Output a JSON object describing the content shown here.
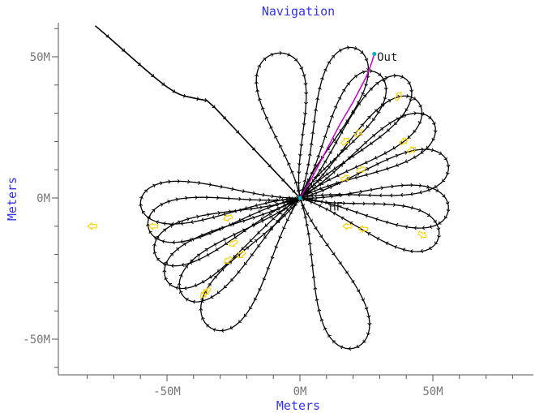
{
  "chart_data": {
    "type": "scatter",
    "title": "Navigation",
    "xlabel": "Meters",
    "ylabel": "Meters",
    "xlim": [
      -83,
      82
    ],
    "ylim": [
      -62,
      62
    ],
    "grid": false,
    "x_ticks": [
      {
        "value": -50,
        "label": "-50M"
      },
      {
        "value": 0,
        "label": "0M"
      },
      {
        "value": 50,
        "label": "50M"
      }
    ],
    "x_minor_ticks": [
      -80,
      -70,
      -60,
      -40,
      -30,
      -20,
      -10,
      10,
      20,
      30,
      40,
      60,
      70,
      80
    ],
    "y_ticks": [
      {
        "value": 50,
        "label": "50M"
      },
      {
        "value": 0,
        "label": "0M"
      },
      {
        "value": -50,
        "label": "-50M"
      }
    ],
    "y_minor_ticks": [
      -60,
      -40,
      -30,
      -20,
      -10,
      10,
      20,
      30,
      40,
      60
    ],
    "annotations": [
      {
        "text": "Out",
        "x": 29,
        "y": 50
      },
      {
        "text": "HF",
        "x": 11,
        "y": -3
      }
    ],
    "track_colors": {
      "track": "#000000",
      "out_leg": "#cc00cc",
      "arrow": "#ffd000",
      "marker": "#00b0c0"
    },
    "approach_track": [
      [
        -77,
        61
      ],
      [
        -72,
        57
      ],
      [
        -66,
        52
      ],
      [
        -60,
        47
      ],
      [
        -55,
        43
      ],
      [
        -51,
        40
      ],
      [
        -49,
        38.7
      ],
      [
        -47,
        37.5
      ],
      [
        -45,
        36.6
      ],
      [
        -43,
        36
      ],
      [
        -38,
        35
      ],
      [
        -35,
        34.5
      ],
      [
        -32,
        32
      ],
      [
        -28,
        28
      ],
      [
        -23,
        23
      ],
      [
        -17,
        17
      ],
      [
        -11,
        11
      ],
      [
        -6,
        6
      ],
      [
        -2,
        2
      ],
      [
        0,
        0
      ]
    ],
    "out_leg": [
      [
        0,
        0
      ],
      [
        5,
        8
      ],
      [
        10,
        17
      ],
      [
        15,
        26
      ],
      [
        20,
        34
      ],
      [
        25,
        43
      ],
      [
        27,
        48
      ],
      [
        28,
        51
      ]
    ],
    "loops": [
      {
        "angle": 100,
        "length": 52,
        "width": 8.5
      },
      {
        "angle": 68,
        "length": 57,
        "width": 7.5
      },
      {
        "angle": 56,
        "length": 53,
        "width": 7
      },
      {
        "angle": 46,
        "length": 58,
        "width": 7
      },
      {
        "angle": 37,
        "length": 56,
        "width": 7
      },
      {
        "angle": 28,
        "length": 57,
        "width": 7
      },
      {
        "angle": 12,
        "length": 57,
        "width": 7
      },
      {
        "angle": -4,
        "length": 56,
        "width": 7
      },
      {
        "angle": -15,
        "length": 54,
        "width": 7
      },
      {
        "angle": -68,
        "length": 57,
        "width": 8
      },
      {
        "angle": 182,
        "length": 60,
        "width": 7
      },
      {
        "angle": 190,
        "length": 58,
        "width": 7
      },
      {
        "angle": 200,
        "length": 58,
        "width": 7
      },
      {
        "angle": 210,
        "length": 58,
        "width": 7
      },
      {
        "angle": 218,
        "length": 56,
        "width": 7
      },
      {
        "angle": 233,
        "length": 57,
        "width": 8
      }
    ],
    "yellow_arrows": [
      {
        "x": -78,
        "y": -10,
        "dir": 180
      },
      {
        "x": -55,
        "y": -10,
        "dir": 180
      },
      {
        "x": -27,
        "y": -7,
        "dir": 200
      },
      {
        "x": -25,
        "y": -16,
        "dir": 210
      },
      {
        "x": -27,
        "y": -22,
        "dir": 215
      },
      {
        "x": -22,
        "y": -20,
        "dir": 215
      },
      {
        "x": -36,
        "y": -34,
        "dir": 220
      },
      {
        "x": -35,
        "y": -33,
        "dir": 220
      },
      {
        "x": 18,
        "y": -10,
        "dir": 180
      },
      {
        "x": 24,
        "y": -11,
        "dir": 180
      },
      {
        "x": 37,
        "y": 36,
        "dir": 55
      },
      {
        "x": 22,
        "y": 23,
        "dir": 45
      },
      {
        "x": 17,
        "y": 20,
        "dir": 40
      },
      {
        "x": 42,
        "y": 17,
        "dir": 30
      },
      {
        "x": 39,
        "y": 20,
        "dir": 30
      },
      {
        "x": 17,
        "y": 7,
        "dir": 20
      },
      {
        "x": 23,
        "y": 10,
        "dir": 20
      },
      {
        "x": 46,
        "y": -13,
        "dir": 330
      }
    ]
  }
}
